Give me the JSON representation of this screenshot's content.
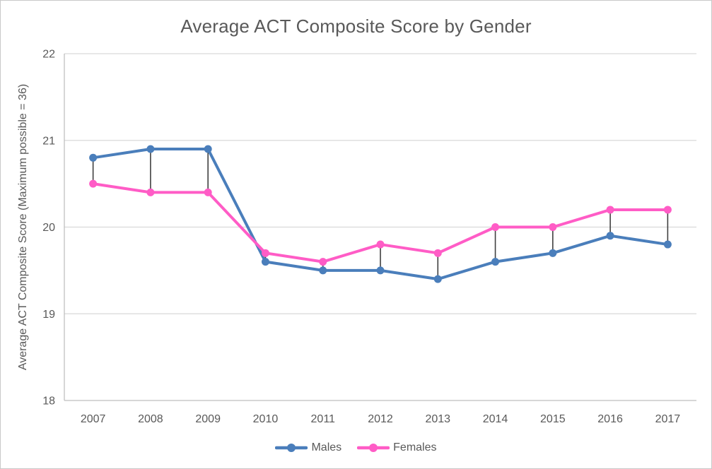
{
  "chart_data": {
    "type": "line",
    "title": "Average ACT Composite Score by Gender",
    "categories": [
      "2007",
      "2008",
      "2009",
      "2010",
      "2011",
      "2012",
      "2013",
      "2014",
      "2015",
      "2016",
      "2017"
    ],
    "series": [
      {
        "name": "Males",
        "color": "#4a7ebb",
        "values": [
          20.8,
          20.9,
          20.9,
          19.6,
          19.5,
          19.5,
          19.4,
          19.6,
          19.7,
          19.9,
          19.8
        ]
      },
      {
        "name": "Females",
        "color": "#ff5cc6",
        "values": [
          20.5,
          20.4,
          20.4,
          19.7,
          19.6,
          19.8,
          19.7,
          20.0,
          20.0,
          20.2,
          20.2
        ]
      }
    ],
    "xlabel": "",
    "ylabel": "Average ACT Composite Score (Maximum possible = 36)",
    "ylim": [
      18,
      22
    ],
    "yticks": [
      18,
      19,
      20,
      21,
      22
    ],
    "grid": "horizontal",
    "legend_position": "bottom",
    "high_low_lines": true,
    "style": {
      "grid_color": "#d9d9d9",
      "axis_color": "#bfbfbf",
      "text_color": "#595959",
      "high_low_color": "#404040",
      "background": "#ffffff"
    }
  }
}
